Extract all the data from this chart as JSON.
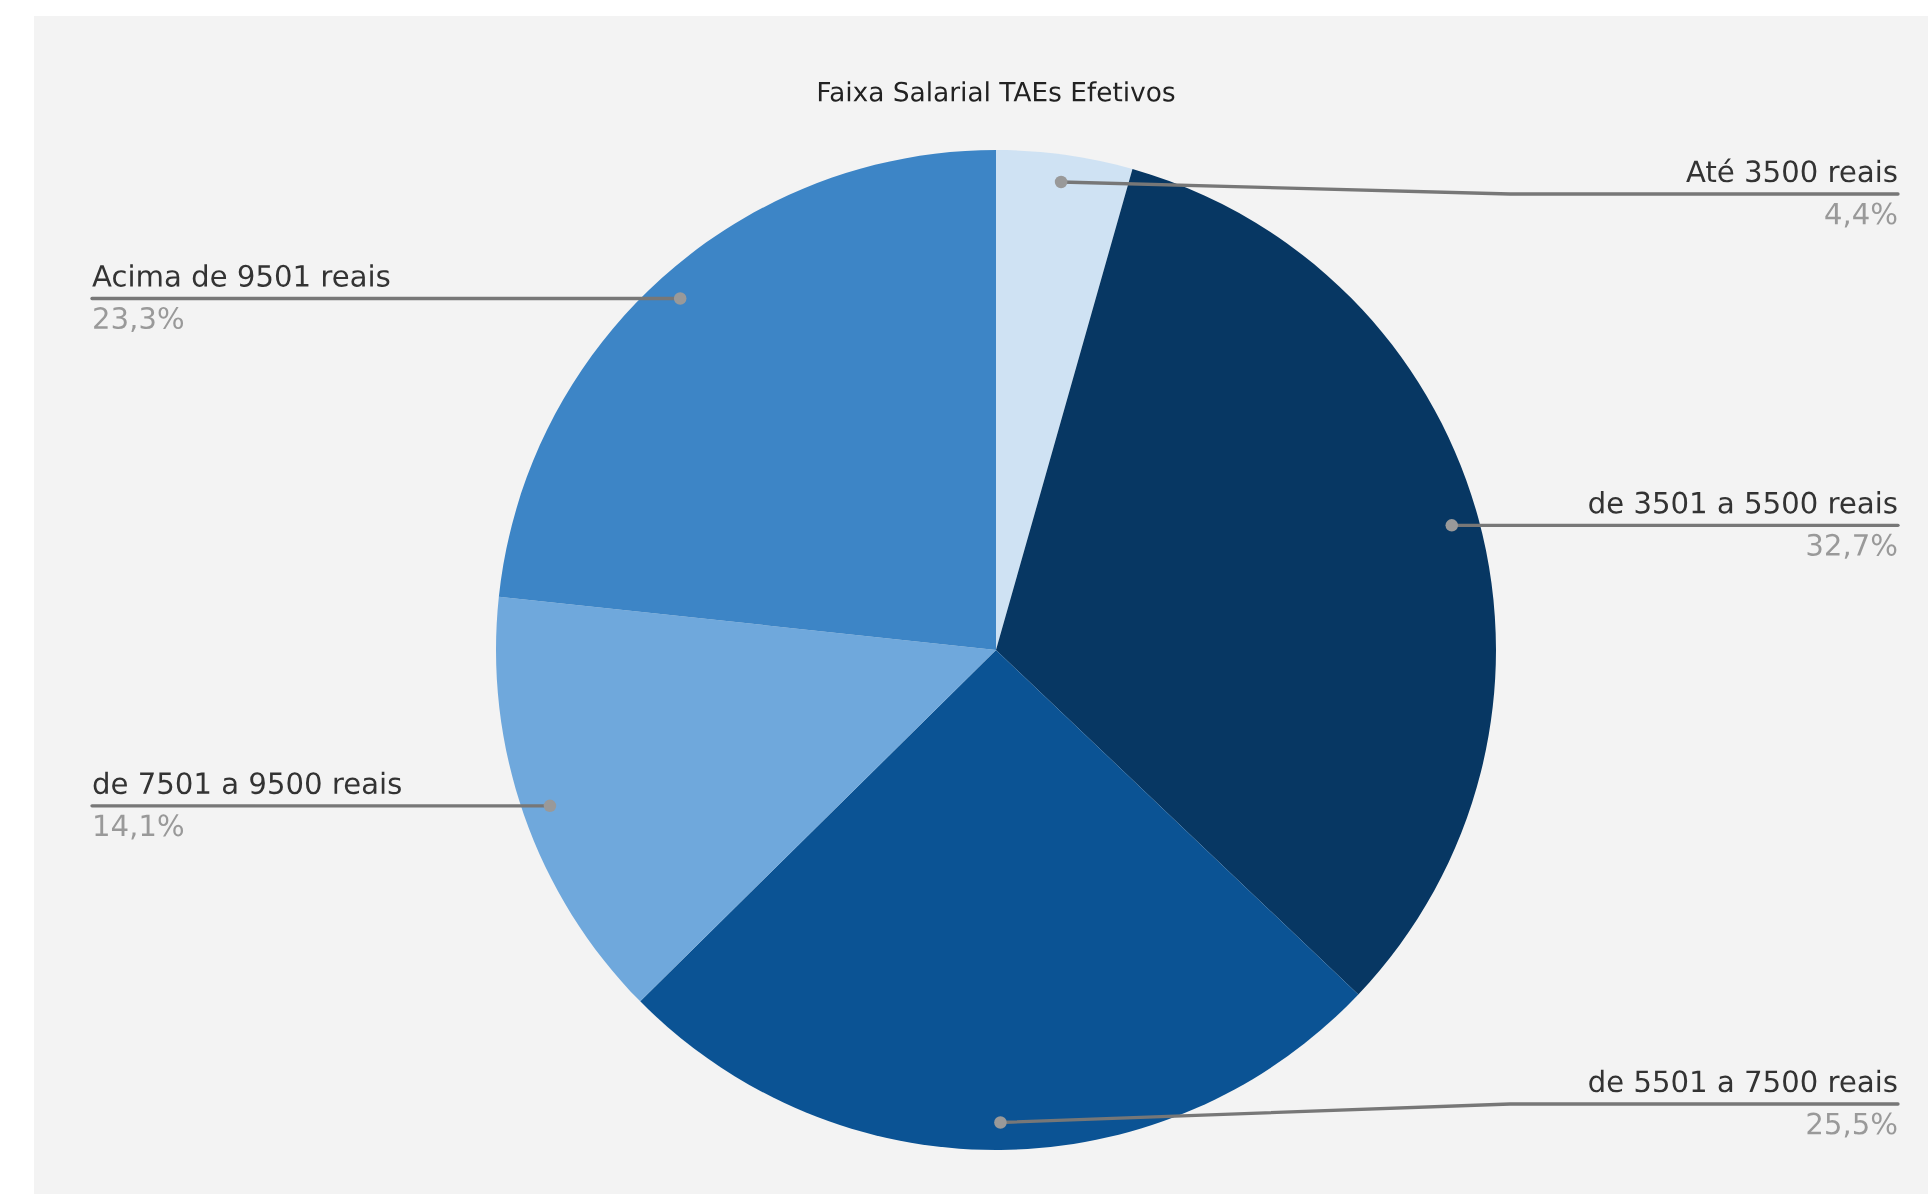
{
  "chart_data": {
    "type": "pie",
    "title": "Faixa Salarial TAEs Efetivos",
    "categories": [
      "Até 3500 reais",
      "de 3501 a 5500 reais",
      "de 5501 a 7500 reais",
      "de 7501 a 9500 reais",
      "Acima de 9501 reais"
    ],
    "values": [
      4.4,
      32.7,
      25.5,
      14.1,
      23.3
    ],
    "colors": [
      "#cfe2f3",
      "#073763",
      "#0b5394",
      "#6fa8dc",
      "#3d85c6"
    ],
    "value_labels": [
      "4,4%",
      "32,7%",
      "25,5%",
      "14,1%",
      "23,3%"
    ]
  }
}
